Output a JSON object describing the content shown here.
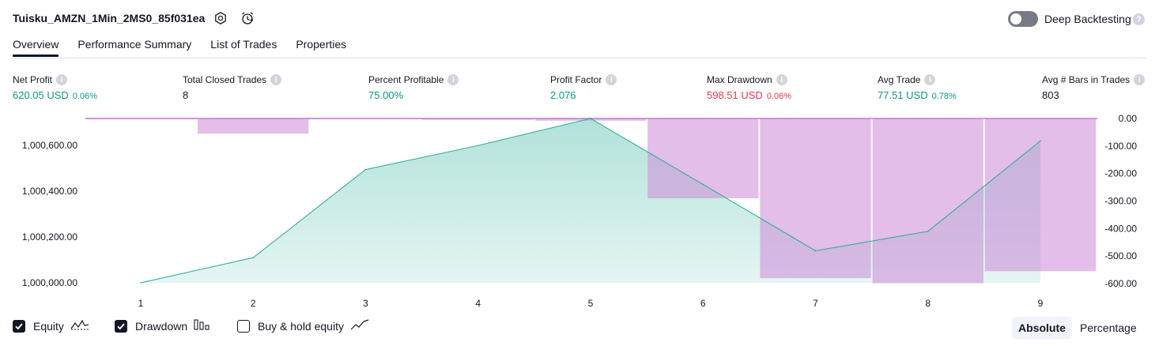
{
  "header": {
    "title": "Tuisku_AMZN_1Min_2MS0_85f031ea",
    "deep_backtesting_label": "Deep Backtesting",
    "deep_backtesting_enabled": false
  },
  "tabs": [
    {
      "label": "Overview",
      "active": true
    },
    {
      "label": "Performance Summary",
      "active": false
    },
    {
      "label": "List of Trades",
      "active": false
    },
    {
      "label": "Properties",
      "active": false
    }
  ],
  "metrics": [
    {
      "label": "Net Profit",
      "value": "620.05 USD",
      "pct": "0.06%",
      "color": "#089981"
    },
    {
      "label": "Total Closed Trades",
      "value": "8",
      "pct": "",
      "color": "#131722"
    },
    {
      "label": "Percent Profitable",
      "value": "75.00%",
      "pct": "",
      "color": "#089981"
    },
    {
      "label": "Profit Factor",
      "value": "2.076",
      "pct": "",
      "color": "#089981"
    },
    {
      "label": "Max Drawdown",
      "value": "598.51 USD",
      "pct": "0.06%",
      "color": "#f23645"
    },
    {
      "label": "Avg Trade",
      "value": "77.51 USD",
      "pct": "0.78%",
      "color": "#089981"
    },
    {
      "label": "Avg # Bars in Trades",
      "value": "803",
      "pct": "",
      "color": "#131722"
    }
  ],
  "chart_data": {
    "type": "area",
    "x": [
      1,
      2,
      3,
      4,
      5,
      6,
      7,
      8,
      9
    ],
    "x_tick_labels": [
      "1",
      "2",
      "3",
      "4",
      "5",
      "6",
      "7",
      "8",
      "9"
    ],
    "series": [
      {
        "type": "area",
        "axis": "left",
        "values": [
          1000000,
          1000110,
          1000495,
          1000600,
          1000718,
          1000430,
          1000140,
          1000225,
          1000620
        ],
        "color": "#22ab94"
      },
      {
        "type": "bar",
        "axis": "right",
        "values": [
          -3,
          -55,
          -3,
          -5,
          -8,
          -290,
          -580,
          -598.51,
          -555
        ],
        "color": "#ce93d8"
      }
    ],
    "left_axis": {
      "ticks": [
        "1,000,000.00",
        "1,000,200.00",
        "1,000,400.00",
        "1,000,600.00"
      ],
      "tick_values": [
        1000000,
        1000200,
        1000400,
        1000600
      ],
      "ylim": [
        1000000,
        1000718
      ]
    },
    "right_axis": {
      "ticks": [
        "0.00",
        "-100.00",
        "-200.00",
        "-300.00",
        "-400.00",
        "-500.00",
        "-600.00"
      ],
      "tick_values": [
        0,
        -100,
        -200,
        -300,
        -400,
        -500,
        -600
      ],
      "ylim": [
        -600,
        0
      ]
    },
    "grid": false
  },
  "legend": {
    "equity": {
      "label": "Equity",
      "checked": true
    },
    "drawdown": {
      "label": "Drawdown",
      "checked": true
    },
    "buy_hold": {
      "label": "Buy & hold equity",
      "checked": false
    }
  },
  "mode_toggle": {
    "absolute": "Absolute",
    "percentage": "Percentage",
    "selected": "Absolute"
  },
  "colors": {
    "equity_line": "#22ab94",
    "drawdown_bar": "#ce93d8",
    "positive": "#089981",
    "negative": "#f23645"
  }
}
